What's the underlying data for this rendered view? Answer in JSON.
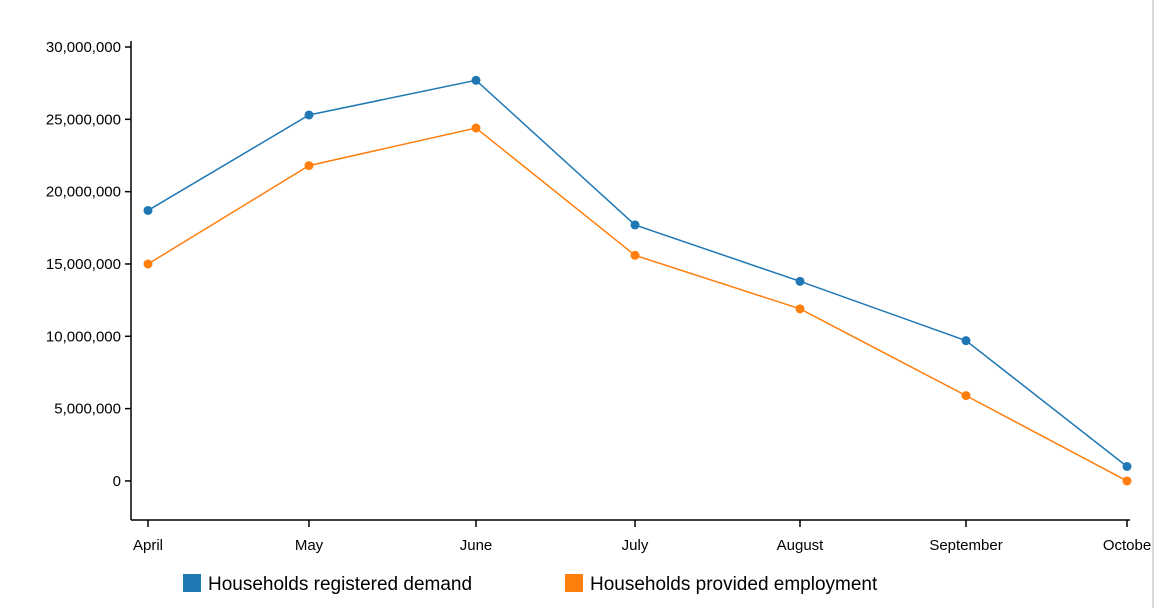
{
  "chart_data": {
    "type": "line",
    "categories": [
      "April",
      "May",
      "June",
      "July",
      "August",
      "September",
      "October"
    ],
    "x_tick_labels": [
      "April",
      "May",
      "June",
      "July",
      "August",
      "September",
      "Octobe"
    ],
    "y_ticks": [
      "0",
      "5,000,000",
      "10,000,000",
      "15,000,000",
      "20,000,000",
      "25,000,000",
      "30,000,000"
    ],
    "ylim": [
      -2700000,
      30000000
    ],
    "grid": false,
    "legend_position": "bottom",
    "series": [
      {
        "name": "Households registered demand",
        "color": "#1f77b4",
        "values": [
          18700000,
          25300000,
          27700000,
          17700000,
          13800000,
          9700000,
          1000000
        ]
      },
      {
        "name": "Households provided employment",
        "color": "#ff7f0e",
        "values": [
          15000000,
          21800000,
          24400000,
          15600000,
          11900000,
          5900000,
          0
        ]
      }
    ]
  }
}
